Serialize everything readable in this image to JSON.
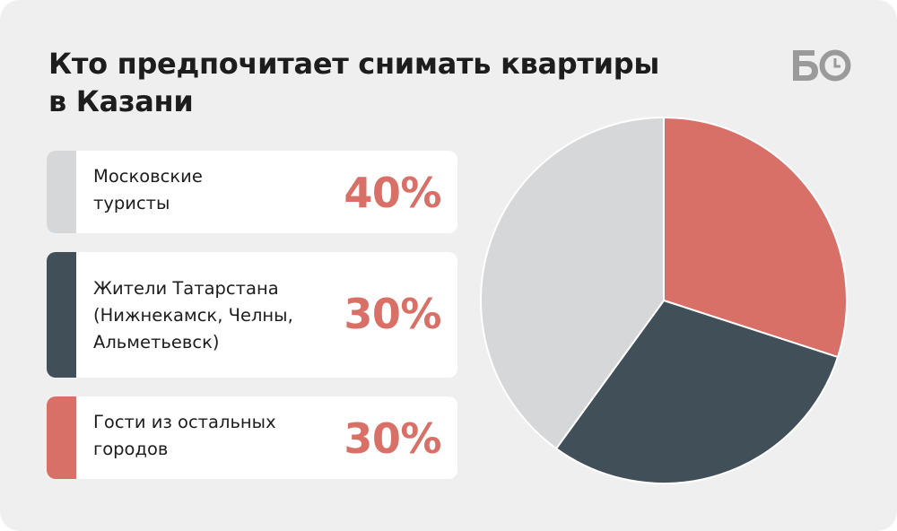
{
  "title": "Кто предпочитает снимать квартиры\nв Казани",
  "logo_text": "БО",
  "colors": {
    "background": "#efefef",
    "accent": "#d97068",
    "dark": "#414f59",
    "light": "#d6d7d9"
  },
  "chart_data": {
    "type": "pie",
    "title": "Кто предпочитает снимать квартиры в Казани",
    "slices": [
      {
        "label": "Московские\nтуристы",
        "value": 40,
        "display": "40%",
        "color": "#d6d7d9"
      },
      {
        "label": "Жители Татарстана\n(Нижнекамск, Челны,\nАльметьевск)",
        "value": 30,
        "display": "30%",
        "color": "#414f59"
      },
      {
        "label": "Гости из остальных\nгородов",
        "value": 30,
        "display": "30%",
        "color": "#d97068"
      }
    ],
    "pie_order": [
      2,
      1,
      0
    ],
    "legend_position": "left"
  }
}
